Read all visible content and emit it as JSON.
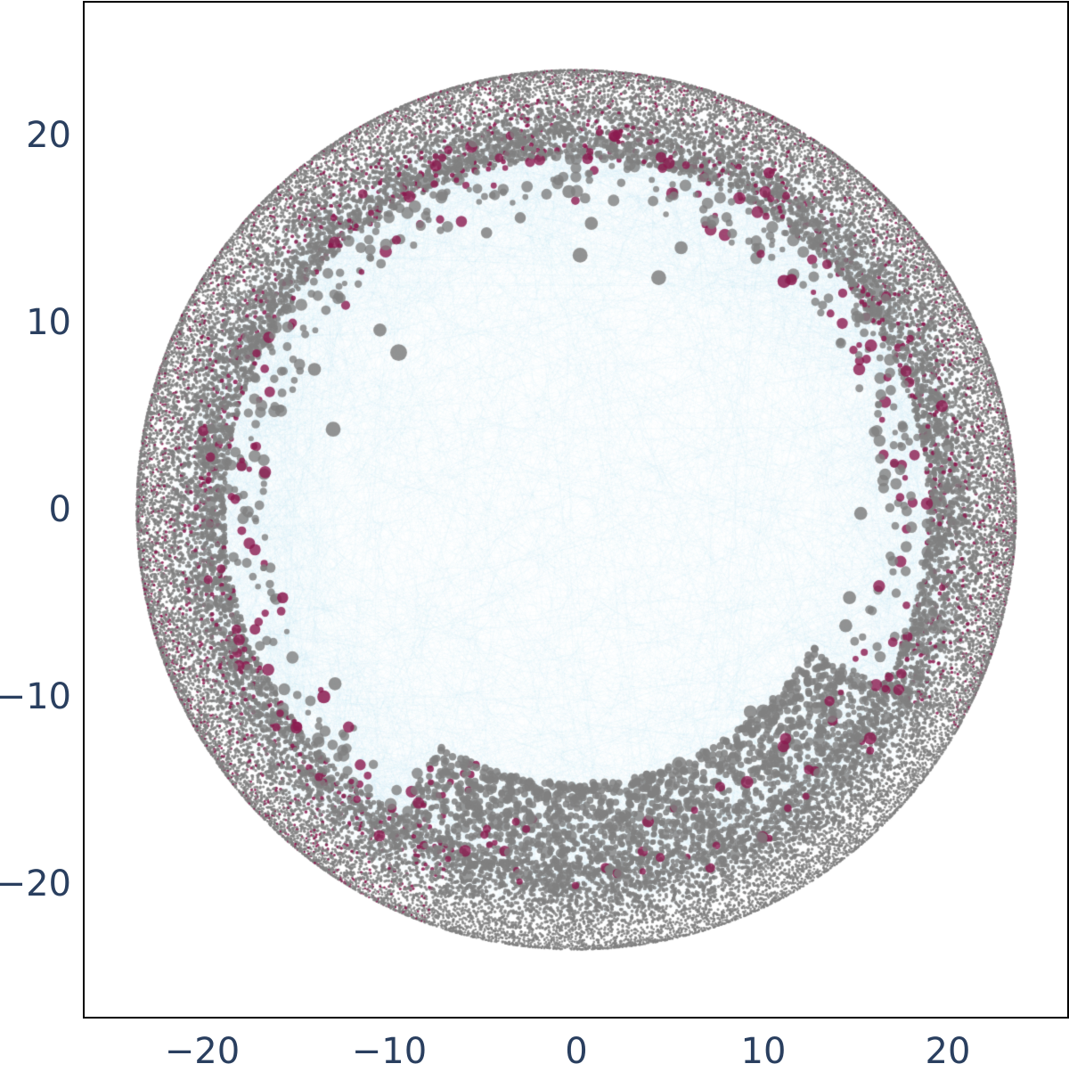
{
  "chart_data": {
    "type": "scatter",
    "subtype": "network-graph-hyperbolic-disk",
    "title": "",
    "xlabel": "",
    "ylabel": "",
    "xlim": [
      -26.3,
      26.3
    ],
    "ylim": [
      -27.0,
      27.2
    ],
    "grid": false,
    "legend": null,
    "x_ticks": [
      -20,
      -10,
      0,
      10,
      20
    ],
    "y_ticks": [
      20,
      10,
      0,
      -10,
      -20
    ],
    "x_tick_labels": [
      "−20",
      "−10",
      "0",
      "10",
      "20"
    ],
    "y_tick_labels": [
      "20",
      "10",
      "0",
      "−10",
      "−20"
    ],
    "disk_radius": 23.5,
    "colors": {
      "edges": "#87ceeb",
      "node_gray": "#808080",
      "node_highlight": "#8b1a4f",
      "tick_text": "#2a3f5f",
      "frame": "#000000"
    },
    "series": [
      {
        "name": "edges",
        "kind": "lines",
        "color": "#87ceeb",
        "opacity": 0.15
      },
      {
        "name": "nodes",
        "kind": "markers",
        "color": "#808080",
        "opacity": 0.8
      },
      {
        "name": "highlighted nodes",
        "kind": "markers",
        "color": "#8b1a4f",
        "opacity": 0.8
      }
    ],
    "large_nodes": [
      {
        "x": -9.5,
        "y": 8.4,
        "r": 0.45,
        "color": "gray"
      },
      {
        "x": 4.4,
        "y": 12.4,
        "r": 0.4,
        "color": "gray"
      },
      {
        "x": 0.2,
        "y": 13.6,
        "r": 0.4,
        "color": "gray"
      },
      {
        "x": -13.0,
        "y": 4.3,
        "r": 0.4,
        "color": "gray"
      },
      {
        "x": 0.8,
        "y": 15.3,
        "r": 0.35,
        "color": "gray"
      },
      {
        "x": -0.4,
        "y": 17.0,
        "r": 0.35,
        "color": "gray"
      },
      {
        "x": 10.0,
        "y": -10.8,
        "r": 0.4,
        "color": "gray"
      },
      {
        "x": 9.3,
        "y": -10.8,
        "r": 0.35,
        "color": "gray"
      },
      {
        "x": 5.5,
        "y": -13.6,
        "r": 0.4,
        "color": "gray"
      },
      {
        "x": 14.4,
        "y": -6.2,
        "r": 0.35,
        "color": "gray"
      },
      {
        "x": 15.2,
        "y": -0.2,
        "r": 0.35,
        "color": "gray"
      },
      {
        "x": 14.6,
        "y": -4.7,
        "r": 0.35,
        "color": "gray"
      },
      {
        "x": -10.5,
        "y": 9.6,
        "r": 0.35,
        "color": "gray"
      },
      {
        "x": -14.0,
        "y": 7.5,
        "r": 0.35,
        "color": "gray"
      },
      {
        "x": -4.8,
        "y": 14.8,
        "r": 0.3,
        "color": "gray"
      },
      {
        "x": -3.0,
        "y": 15.6,
        "r": 0.3,
        "color": "gray"
      },
      {
        "x": 5.6,
        "y": 14.0,
        "r": 0.35,
        "color": "gray"
      },
      {
        "x": 11.1,
        "y": 12.2,
        "r": 0.35,
        "color": "highlight"
      },
      {
        "x": 11.5,
        "y": 12.3,
        "r": 0.3,
        "color": "highlight"
      },
      {
        "x": -13.5,
        "y": -10.0,
        "r": 0.35,
        "color": "highlight"
      },
      {
        "x": -15.7,
        "y": -4.7,
        "r": 0.3,
        "color": "highlight"
      },
      {
        "x": 10.3,
        "y": 18.0,
        "r": 0.3,
        "color": "highlight"
      },
      {
        "x": -12.9,
        "y": -9.3,
        "r": 0.35,
        "color": "gray"
      },
      {
        "x": 8.4,
        "y": -13.3,
        "r": 0.35,
        "color": "gray"
      }
    ],
    "structure_notes": "Dense gray node ring concentrated near disk boundary (r ~19-23.5); crimson highlighted nodes interspersed at periphery; light-blue edges fill disk interior; radial bundles of gray nodes in lower-right quadrant."
  },
  "render": {
    "seed": 1337,
    "edge_count": 2600,
    "hub_edges": 1400,
    "boundary_node_count": 36000,
    "mid_node_count": 900,
    "highlight_ratio": 0.09
  }
}
